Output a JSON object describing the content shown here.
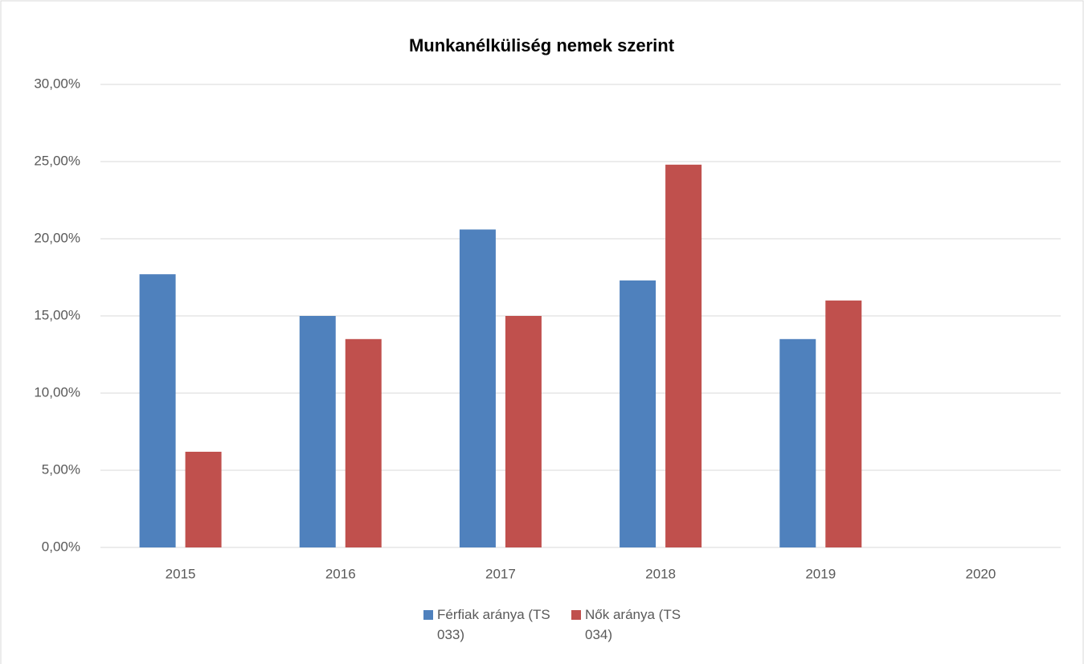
{
  "chart_data": {
    "type": "bar",
    "title": "Munkanélküliség nemek szerint",
    "categories": [
      "2015",
      "2016",
      "2017",
      "2018",
      "2019",
      "2020"
    ],
    "series": [
      {
        "name": "Férfiak aránya (TS 033)",
        "color": "#4f81bd",
        "values": [
          17.7,
          15.0,
          20.6,
          17.3,
          13.5,
          null
        ]
      },
      {
        "name": "Nők aránya (TS 034)",
        "color": "#c0504d",
        "values": [
          6.2,
          13.5,
          15.0,
          24.8,
          16.0,
          null
        ]
      }
    ],
    "ylim": [
      0,
      30
    ],
    "yticks": [
      {
        "value": 0,
        "label": "0,00%"
      },
      {
        "value": 5,
        "label": "5,00%"
      },
      {
        "value": 10,
        "label": "10,00%"
      },
      {
        "value": 15,
        "label": "15,00%"
      },
      {
        "value": 20,
        "label": "20,00%"
      },
      {
        "value": 25,
        "label": "25,00%"
      },
      {
        "value": 30,
        "label": "30,00%"
      }
    ],
    "grid": true,
    "legend": "bottom"
  }
}
